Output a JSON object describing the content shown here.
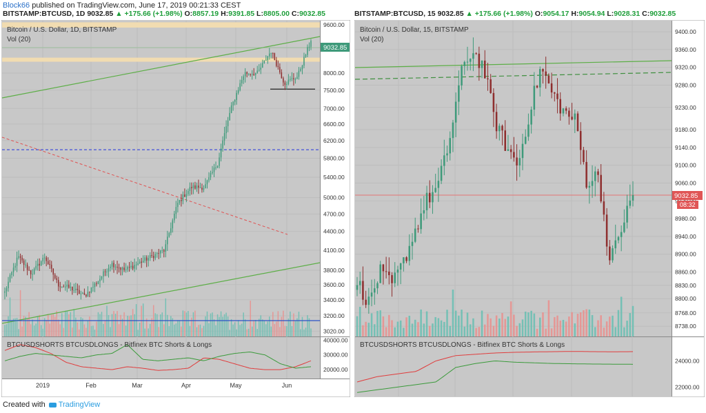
{
  "header": {
    "user": "Block66",
    "published": " published on TradingView.com, June 17, 2019 00:21:33 CEST"
  },
  "footer": {
    "created_with": "Created with",
    "brand": "TradingView"
  },
  "left": {
    "bar": {
      "symbol": "BITSTAMP:BTCUSD, 1D",
      "price": "9032.85",
      "change": "▲ +175.66 (+1.98%)",
      "o": "8857.19",
      "h": "9391.85",
      "l": "8805.00",
      "c": "9032.85"
    },
    "title": "Bitcoin / U.S. Dollar, 1D, BITSTAMP",
    "vol": "Vol (20)",
    "indicator": "BTCUSDSHORTS BTCUSDLONGS - Bitfinex BTC Shorts & Longs",
    "price_label": "9032.85"
  },
  "right": {
    "bar": {
      "symbol": "BITSTAMP:BTCUSD, 15",
      "price": "9032.85",
      "change": "▲ +175.66 (+1.98%)",
      "o": "9054.17",
      "h": "9054.94",
      "l": "9028.31",
      "c": "9032.85"
    },
    "title": "Bitcoin / U.S. Dollar, 15, BITSTAMP",
    "vol": "Vol (20)",
    "indicator": "BTCUSDSHORTS BTCUSDLONGS - Bitfinex BTC Shorts & Longs",
    "price_label": "9032.85",
    "countdown": "08:32"
  },
  "chart_data": [
    {
      "type": "candlestick",
      "title": "Bitcoin / U.S. Dollar, 1D, BITSTAMP",
      "y_axis": {
        "ticks": [
          3020,
          3200,
          3400,
          3600,
          3800,
          4100,
          4400,
          4700,
          5000,
          5400,
          5800,
          6200,
          6600,
          7000,
          7500,
          8000,
          8800,
          9600
        ],
        "tick_labels": [
          "3020.00",
          "3200.00",
          "3400.00",
          "3600.00",
          "3800.00",
          "4100.00",
          "4400.00",
          "4700.00",
          "5000.00",
          "5400.00",
          "5800.00",
          "6200.00",
          "6600.00",
          "7000.00",
          "7500.00",
          "8000.00",
          "8800.00",
          "9600.00"
        ],
        "scale": "log"
      },
      "x_axis": {
        "tick_labels": [
          "2019",
          "Feb",
          "Mar",
          "Apr",
          "May",
          "Jun"
        ]
      },
      "approx_close_path": [
        {
          "date": "2018-12-18",
          "close": 3500
        },
        {
          "date": "2018-12-24",
          "close": 4000
        },
        {
          "date": "2018-12-31",
          "close": 3750
        },
        {
          "date": "2019-01-07",
          "close": 4000
        },
        {
          "date": "2019-01-10",
          "close": 3600
        },
        {
          "date": "2019-01-20",
          "close": 3550
        },
        {
          "date": "2019-01-28",
          "close": 3450
        },
        {
          "date": "2019-02-08",
          "close": 3650
        },
        {
          "date": "2019-02-18",
          "close": 3900
        },
        {
          "date": "2019-02-24",
          "close": 3800
        },
        {
          "date": "2019-03-10",
          "close": 3900
        },
        {
          "date": "2019-03-25",
          "close": 4000
        },
        {
          "date": "2019-04-01",
          "close": 4100
        },
        {
          "date": "2019-04-02",
          "close": 4900
        },
        {
          "date": "2019-04-10",
          "close": 5200
        },
        {
          "date": "2019-04-25",
          "close": 5200
        },
        {
          "date": "2019-05-06",
          "close": 5700
        },
        {
          "date": "2019-05-12",
          "close": 7000
        },
        {
          "date": "2019-05-14",
          "close": 8000
        },
        {
          "date": "2019-05-20",
          "close": 8000
        },
        {
          "date": "2019-05-28",
          "close": 8700
        },
        {
          "date": "2019-06-04",
          "close": 7700
        },
        {
          "date": "2019-06-10",
          "close": 7900
        },
        {
          "date": "2019-06-17",
          "close": 9032.85
        }
      ],
      "horizontal_lines": [
        {
          "value": 5990,
          "style": "dashed",
          "color": "#2233dd"
        },
        {
          "value": 7530,
          "style": "solid",
          "color": "#222222"
        }
      ],
      "resistance_bands": [
        [
          9500,
          9690
        ],
        [
          8350,
          8480
        ]
      ],
      "volume_series": "Vol (20)",
      "indicator": {
        "name": "BTCUSDSHORTS BTCUSDLONGS - Bitfinex BTC Shorts & Longs",
        "ticks": [
          20000,
          30000,
          40000
        ],
        "tick_labels": [
          "20000.00",
          "30000.00",
          "40000.00"
        ]
      }
    },
    {
      "type": "candlestick",
      "title": "Bitcoin / U.S. Dollar, 15, BITSTAMP",
      "y_axis": {
        "ticks": [
          8738,
          8768,
          8800,
          8830,
          8860,
          8900,
          8940,
          8980,
          9020,
          9060,
          9100,
          9140,
          9180,
          9230,
          9280,
          9320,
          9360,
          9400
        ],
        "tick_labels": [
          "8738.00",
          "8768.00",
          "8800.00",
          "8830.00",
          "8860.00",
          "8900.00",
          "8940.00",
          "8980.00",
          "9020.00",
          "9060.00",
          "9100.00",
          "9140.00",
          "9180.00",
          "9230.00",
          "9280.00",
          "9320.00",
          "9360.00",
          "9400.00"
        ]
      },
      "x_axis": {
        "tick_labels": [
          "16",
          "06:00",
          "12:00",
          "18:00",
          "17"
        ]
      },
      "approx_close_path": [
        {
          "t": "15 20:00",
          "close": 8840
        },
        {
          "t": "15 23:00",
          "close": 8790
        },
        {
          "t": "16 01:00",
          "close": 8860
        },
        {
          "t": "16 02:00",
          "close": 8830
        },
        {
          "t": "16 03:00",
          "close": 8880
        },
        {
          "t": "16 04:00",
          "close": 8950
        },
        {
          "t": "16 05:00",
          "close": 9020
        },
        {
          "t": "16 06:00",
          "close": 9050
        },
        {
          "t": "16 07:00",
          "close": 9150
        },
        {
          "t": "16 08:00",
          "close": 9300
        },
        {
          "t": "16 09:00",
          "close": 9360
        },
        {
          "t": "16 10:00",
          "close": 9320
        },
        {
          "t": "16 11:00",
          "close": 9200
        },
        {
          "t": "16 12:00",
          "close": 9140
        },
        {
          "t": "16 14:00",
          "close": 9100
        },
        {
          "t": "16 15:00",
          "close": 9220
        },
        {
          "t": "16 16:00",
          "close": 9320
        },
        {
          "t": "16 17:00",
          "close": 9260
        },
        {
          "t": "16 18:00",
          "close": 9220
        },
        {
          "t": "16 19:00",
          "close": 9200
        },
        {
          "t": "16 20:00",
          "close": 9060
        },
        {
          "t": "16 21:00",
          "close": 9080
        },
        {
          "t": "16 22:00",
          "close": 8880
        },
        {
          "t": "16 23:00",
          "close": 8960
        },
        {
          "t": "17 00:00",
          "close": 9032.85
        }
      ],
      "horizontal_lines": [
        {
          "value": 9032.85,
          "style": "solid",
          "color": "#e57373"
        }
      ],
      "volume_series": "Vol (20)",
      "indicator": {
        "name": "BTCUSDSHORTS BTCUSDLONGS - Bitfinex BTC Shorts & Longs",
        "ticks": [
          22000,
          24000
        ],
        "tick_labels": [
          "22000.00",
          "24000.00"
        ]
      }
    }
  ],
  "colors": {
    "up": "#3e9a7a",
    "down": "#8e2e2e",
    "vol_up": "#6bbfb2",
    "vol_down": "#e8918f",
    "panel_bg": "#c8c8c8",
    "trend": "#5cae46",
    "red_dash": "#e05050"
  }
}
